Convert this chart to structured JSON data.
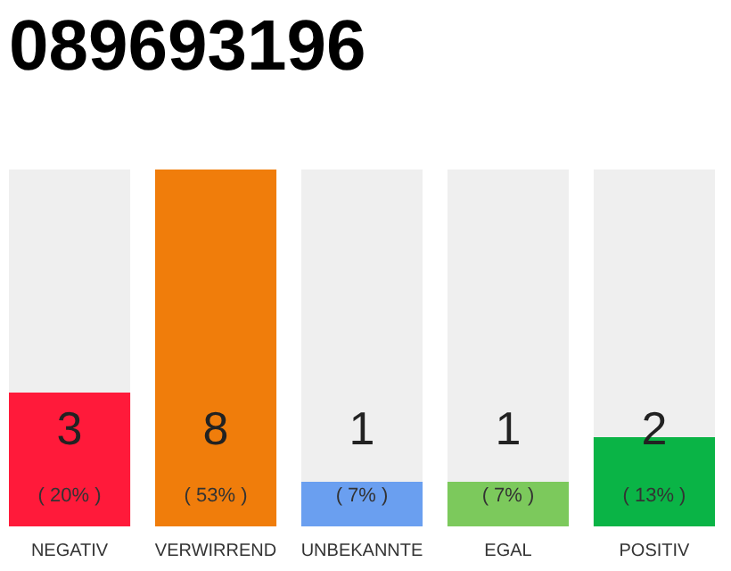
{
  "chart_data": {
    "type": "bar",
    "title": "089693196",
    "categories": [
      "NEGATIV",
      "VERWIRREND",
      "UNBEKANNTE",
      "EGAL",
      "POSITIV"
    ],
    "values": [
      3,
      8,
      1,
      1,
      2
    ],
    "colors": [
      "#ff1a3a",
      "#f07d0b",
      "#6a9ff0",
      "#7cc95c",
      "#0ab446"
    ],
    "ylim": [
      0,
      8
    ],
    "data_labels": true,
    "annotations": [
      "( 20% )",
      "( 53% )",
      "( 7% )",
      "( 7% )",
      "( 13% )"
    ]
  }
}
